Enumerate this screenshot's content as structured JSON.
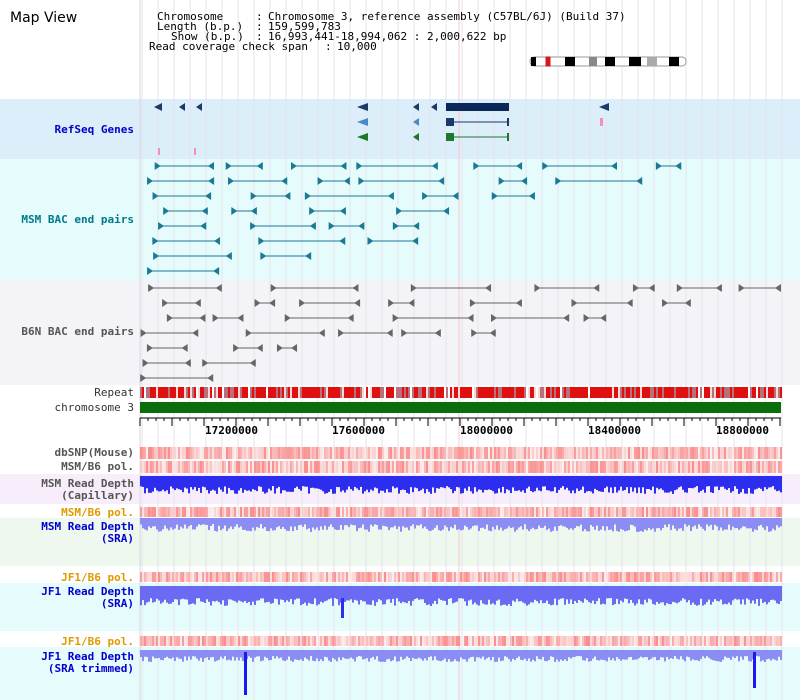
{
  "app": {
    "title": "Map View"
  },
  "header": {
    "chromosome_label": "Chromosome",
    "chromosome_value": "Chromosome 3, reference assembly (C57BL/6J) (Build 37)",
    "length_label": "Length (b.p.)",
    "length_value": "159,599,783",
    "show_label": "Show (b.p.)",
    "show_value": "16,993,441-18,994,062 : 2,000,622 bp",
    "coverage_label": "Read coverage check span",
    "coverage_value": "10,000",
    "separator": ":"
  },
  "tracks": {
    "refseq": "RefSeq Genes",
    "msm_bac": "MSM BAC end pairs",
    "b6n_bac": "B6N BAC end pairs",
    "repeat": "Repeat",
    "chromosome": "chromosome 3",
    "dbsnp": "dbSNP(Mouse)",
    "msm_b6_pol_1": "MSM/B6 pol.",
    "msm_read_depth_cap_1": "MSM Read Depth",
    "msm_read_depth_cap_2": "(Capillary)",
    "msm_b6_pol_2": "MSM/B6 pol.",
    "msm_read_depth_sra_1": "MSM Read Depth",
    "msm_read_depth_sra_2": "(SRA)",
    "jf1_b6_pol_1": "JF1/B6 pol.",
    "jf1_read_depth_1": "JF1 Read Depth",
    "jf1_read_depth_2": "(SRA)",
    "jf1_b6_pol_2": "JF1/B6 pol.",
    "jf1_trim_1": "JF1 Read Depth",
    "jf1_trim_2": "(SRA trimmed)"
  },
  "ruler": {
    "ticks": [
      "17200000",
      "17600000",
      "18000000",
      "18400000",
      "18800000"
    ]
  },
  "colors": {
    "refseq_bg": "#dceefa",
    "bac_bg": "#e6fbfb",
    "b6n_bg": "#f2f2f7",
    "msm_bac": "#1a7a96",
    "b6n_bac": "#666666",
    "repeat_red": "#e01010",
    "chromosome_green": "#0a6e0a",
    "depth_blue": "#2d2df0",
    "depth_light": "#8c8cf5",
    "pol_red": "#f59090"
  },
  "icons": {
    "ideogram": "chromosome-ideogram-icon"
  }
}
